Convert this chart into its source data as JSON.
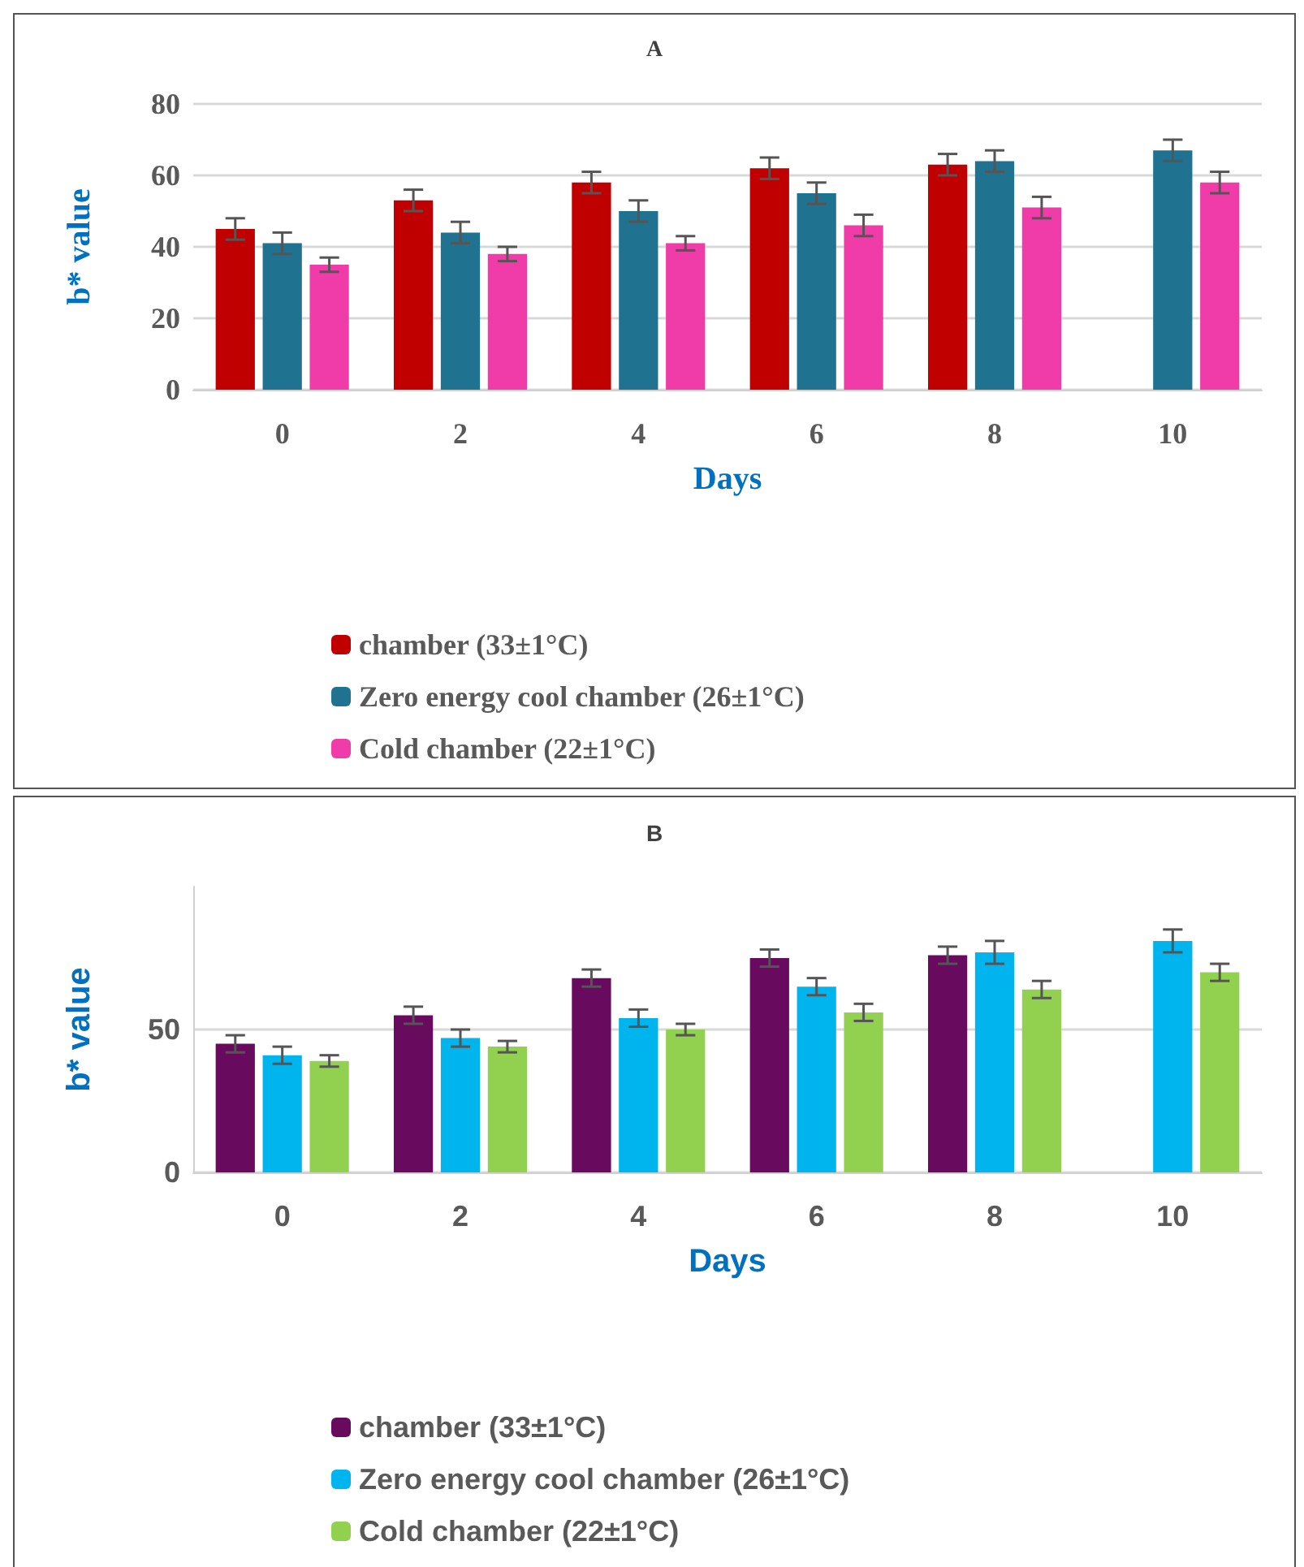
{
  "chart_data": [
    {
      "type": "bar",
      "title": "A",
      "xlabel": "Days",
      "ylabel": "b* value",
      "categories": [
        "0",
        "2",
        "4",
        "6",
        "8",
        "10"
      ],
      "ylim": [
        0,
        80
      ],
      "yticks": [
        0,
        20,
        40,
        60,
        80
      ],
      "grid": "y",
      "legend": "bottom",
      "series": [
        {
          "name": "chamber (33±1°C)",
          "color": "#c00000",
          "values": [
            45,
            53,
            58,
            62,
            63,
            null
          ],
          "errors": [
            3,
            3,
            3,
            3,
            3,
            null
          ]
        },
        {
          "name": "Zero energy cool chamber (26±1°C)",
          "color": "#1f7391",
          "values": [
            41,
            44,
            50,
            55,
            64,
            67
          ],
          "errors": [
            3,
            3,
            3,
            3,
            3,
            3
          ]
        },
        {
          "name": "Cold chamber (22±1°C)",
          "color": "#f03ca8",
          "values": [
            35,
            38,
            41,
            46,
            51,
            58
          ],
          "errors": [
            2,
            2,
            2,
            3,
            3,
            3
          ]
        }
      ]
    },
    {
      "type": "bar",
      "title": "B",
      "xlabel": "Days",
      "ylabel": "b* value",
      "categories": [
        "0",
        "2",
        "4",
        "6",
        "8",
        "10"
      ],
      "ylim": [
        0,
        100
      ],
      "yticks": [
        0,
        50
      ],
      "grid": "y",
      "legend": "bottom",
      "series": [
        {
          "name": "chamber (33±1°C)",
          "color": "#680a5e",
          "values": [
            45,
            55,
            68,
            75,
            76,
            null
          ],
          "errors": [
            3,
            3,
            3,
            3,
            3,
            null
          ]
        },
        {
          "name": "Zero energy cool chamber (26±1°C)",
          "color": "#00b4ee",
          "values": [
            41,
            47,
            54,
            65,
            77,
            81
          ],
          "errors": [
            3,
            3,
            3,
            3,
            4,
            4
          ]
        },
        {
          "name": "Cold chamber (22±1°C)",
          "color": "#92d050",
          "values": [
            39,
            44,
            50,
            56,
            64,
            70
          ],
          "errors": [
            2,
            2,
            2,
            3,
            3,
            3
          ]
        }
      ]
    }
  ]
}
